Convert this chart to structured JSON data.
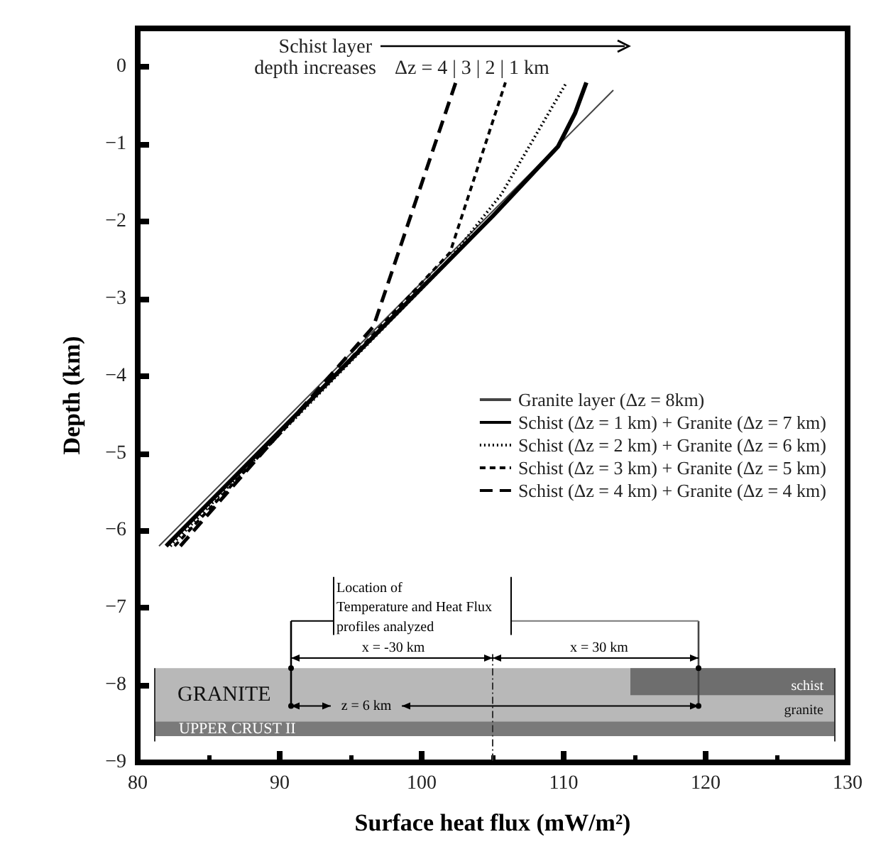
{
  "chart_data": {
    "type": "line",
    "xlabel": "Surface heat flux (mW/m²)",
    "ylabel": "Depth (km)",
    "xlim": [
      80,
      130
    ],
    "xticks": [
      80,
      90,
      100,
      110,
      120,
      130
    ],
    "ylim": [
      -9,
      0.5
    ],
    "yticks": [
      {
        "value": -9,
        "label": "−9"
      },
      {
        "value": -8,
        "label": "−8"
      },
      {
        "value": -7,
        "label": "−7"
      },
      {
        "value": -6,
        "label": "−6"
      },
      {
        "value": -5,
        "label": "−5"
      },
      {
        "value": -4,
        "label": "−4"
      },
      {
        "value": -3,
        "label": "−3"
      },
      {
        "value": -2,
        "label": "−2"
      },
      {
        "value": -1,
        "label": "−1"
      },
      0
    ],
    "legend": "right",
    "series": [
      {
        "name": "Granite layer (Δz = 8km)",
        "color": "#444444",
        "line_style": "solid",
        "x": [
          81.5,
          113.5
        ],
        "values": [
          -6.2,
          -0.3
        ]
      },
      {
        "name": "Schist (Δz = 1 km) + Granite (Δz = 7 km)",
        "color": "#000000",
        "line_style": "solid",
        "x": [
          82.0,
          105.0,
          109.6,
          110.8,
          111.6
        ],
        "values": [
          -6.2,
          -1.93,
          -1.03,
          -0.6,
          -0.2
        ]
      },
      {
        "name": "Schist (Δz = 2 km) + Granite (Δz = 6 km)",
        "color": "#000000",
        "line_style": "dotted",
        "x": [
          82.3,
          101.6,
          105.6,
          110.2
        ],
        "values": [
          -6.2,
          -2.57,
          -1.65,
          -0.2
        ]
      },
      {
        "name": "Schist (Δz = 3 km) + Granite (Δz = 5 km)",
        "color": "#000000",
        "line_style": "dashed",
        "x": [
          82.6,
          102.0,
          105.9
        ],
        "values": [
          -6.2,
          -2.4,
          -0.2
        ]
      },
      {
        "name": "Schist (Δz = 4 km) + Granite (Δz = 4 km)",
        "color": "#000000",
        "line_style": "dashed",
        "x": [
          83.0,
          96.6,
          102.4
        ],
        "values": [
          -6.2,
          -3.36,
          -0.2
        ]
      }
    ],
    "annotations": [
      "Schist layer",
      "depth increases",
      "Δz =  4  |  3  |  2  |  1 km",
      "Location of",
      "Temperature and Heat Flux",
      "profiles analyzed",
      "x = -30 km",
      "x = 30 km",
      "GRANITE",
      "z = 6 km",
      "schist",
      "granite",
      "UPPER CRUST II"
    ]
  }
}
